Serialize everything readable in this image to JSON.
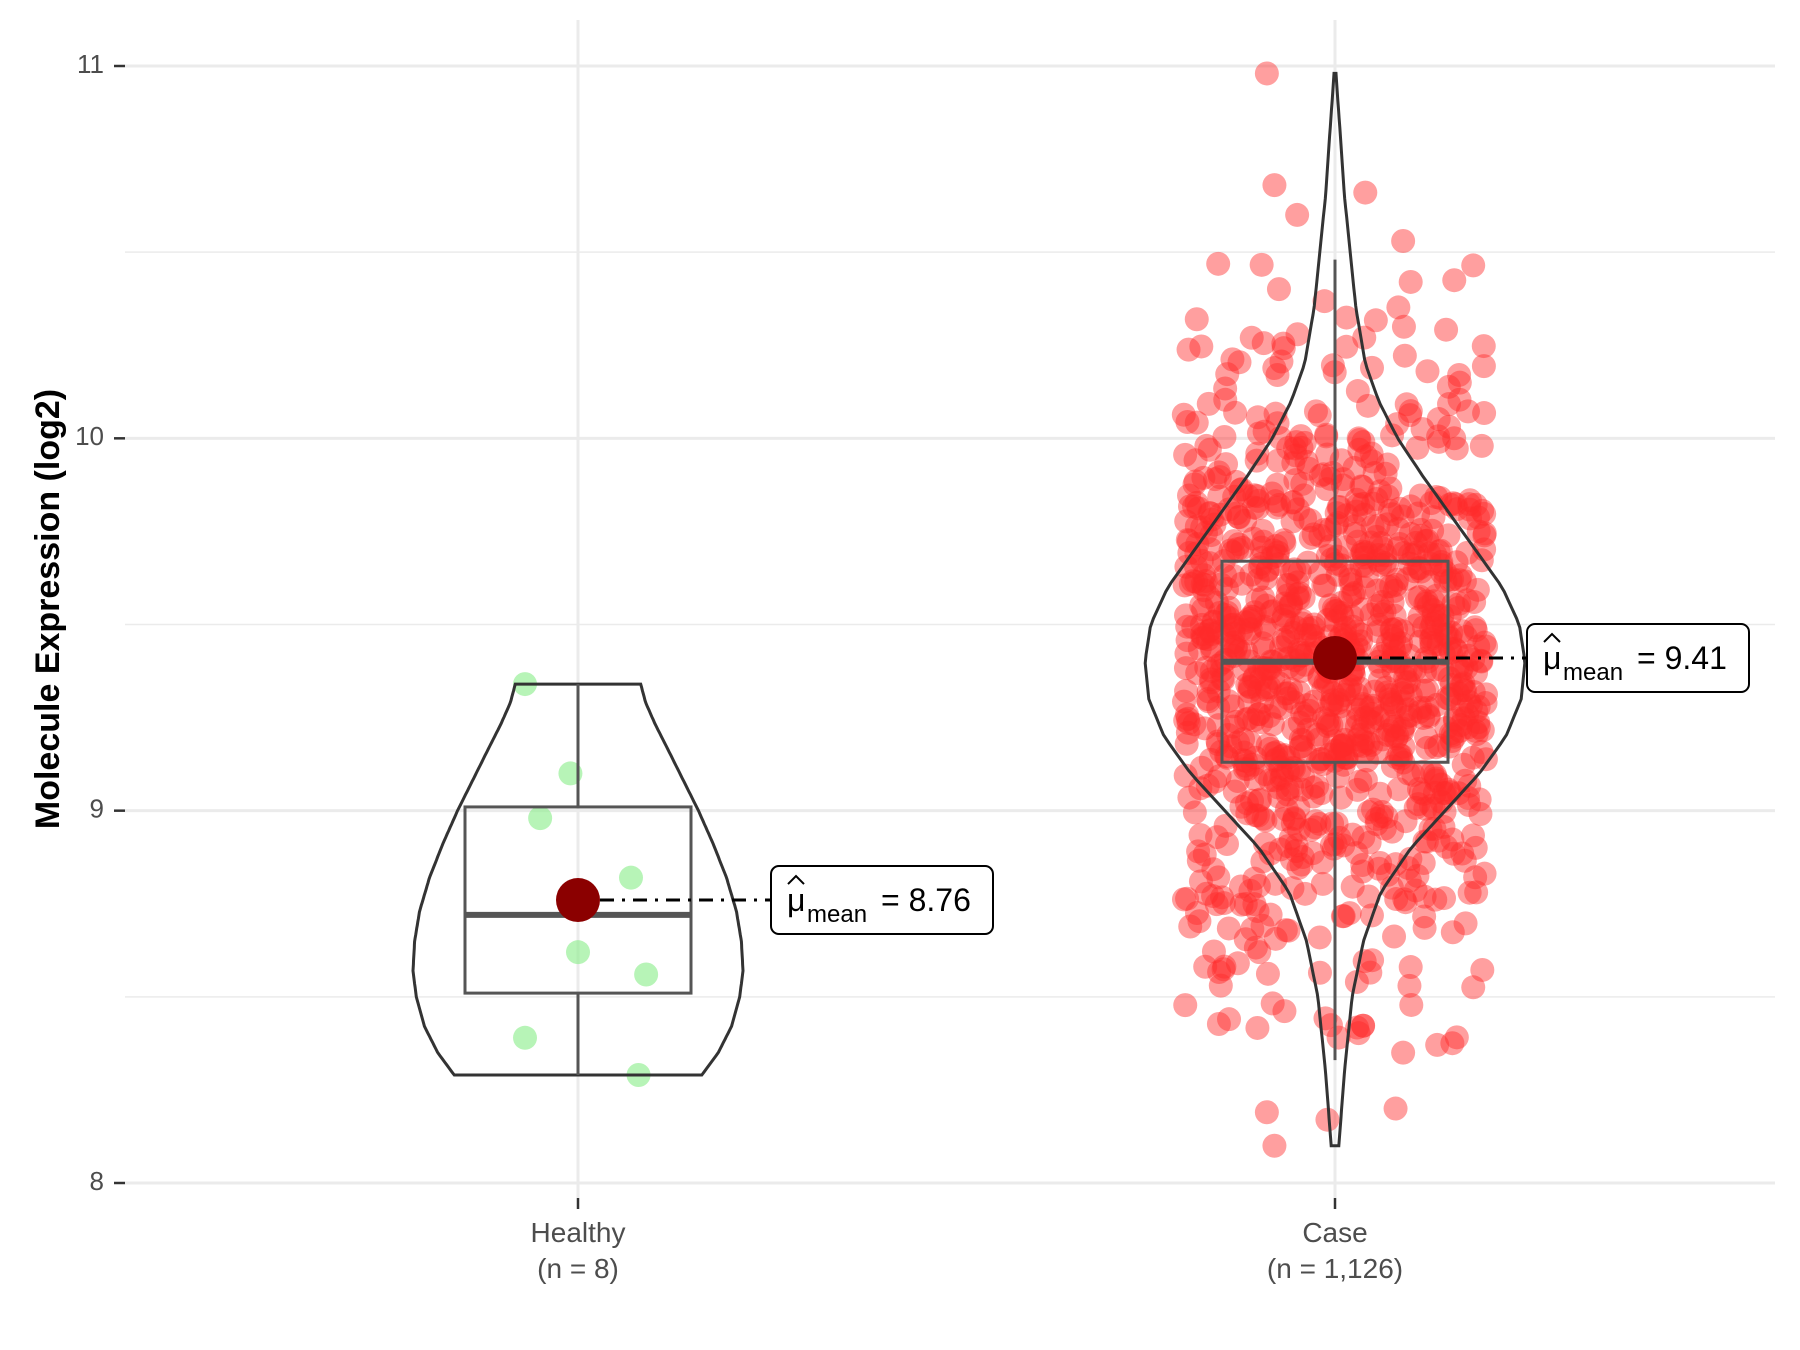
{
  "chart_data": {
    "type": "violin",
    "title": "",
    "xlabel": "",
    "ylabel": "Molecule Expression (log2)",
    "ylim": [
      7.9,
      11.15
    ],
    "yticks": [
      8,
      9,
      10,
      11
    ],
    "ytick_labels": [
      "8",
      "9",
      "10",
      "11"
    ],
    "grid": true,
    "legend": "none",
    "colors": {
      "grid": "#ebebeb",
      "outline": "#333333",
      "box": "#555555",
      "mean": "#8b0000"
    },
    "groups": [
      {
        "name": "Healthy",
        "n_label": "(n = 8)",
        "color": "#90ee90",
        "point_opacity": 0.65,
        "box": {
          "q1": 8.51,
          "median": 8.72,
          "q3": 9.01,
          "whisker_low": 8.29,
          "whisker_high": 9.34
        },
        "mean": 8.76,
        "mean_label": "8.76",
        "violin_range": [
          8.29,
          9.34
        ],
        "violin_profile": [
          [
            8.29,
            0.75
          ],
          [
            8.35,
            0.85
          ],
          [
            8.42,
            0.93
          ],
          [
            8.5,
            0.98
          ],
          [
            8.57,
            1.0
          ],
          [
            8.65,
            0.99
          ],
          [
            8.73,
            0.96
          ],
          [
            8.82,
            0.9
          ],
          [
            8.91,
            0.82
          ],
          [
            9.0,
            0.73
          ],
          [
            9.08,
            0.64
          ],
          [
            9.16,
            0.55
          ],
          [
            9.23,
            0.47
          ],
          [
            9.29,
            0.41
          ],
          [
            9.34,
            0.38
          ]
        ],
        "points": [
          [
            -0.07,
            9.34
          ],
          [
            -0.01,
            9.1
          ],
          [
            -0.05,
            8.98
          ],
          [
            0.07,
            8.82
          ],
          [
            0.0,
            8.62
          ],
          [
            0.09,
            8.56
          ],
          [
            -0.07,
            8.39
          ],
          [
            0.08,
            8.29
          ]
        ]
      },
      {
        "name": "Case",
        "n_label": "(n = 1,126)",
        "color": "#ff2a2a",
        "point_opacity": 0.45,
        "box": {
          "q1": 9.13,
          "median": 9.4,
          "q3": 9.67,
          "whisker_low": 8.33,
          "whisker_high": 10.48
        },
        "mean": 9.41,
        "mean_label": "9.41",
        "violin_range": [
          8.1,
          10.98
        ],
        "violin_profile": [
          [
            8.1,
            0.02
          ],
          [
            8.3,
            0.05
          ],
          [
            8.5,
            0.09
          ],
          [
            8.65,
            0.15
          ],
          [
            8.78,
            0.24
          ],
          [
            8.9,
            0.4
          ],
          [
            9.0,
            0.58
          ],
          [
            9.1,
            0.76
          ],
          [
            9.2,
            0.9
          ],
          [
            9.3,
            0.98
          ],
          [
            9.4,
            1.0
          ],
          [
            9.5,
            0.97
          ],
          [
            9.6,
            0.88
          ],
          [
            9.7,
            0.74
          ],
          [
            9.8,
            0.6
          ],
          [
            9.9,
            0.46
          ],
          [
            10.0,
            0.33
          ],
          [
            10.1,
            0.23
          ],
          [
            10.2,
            0.16
          ],
          [
            10.35,
            0.11
          ],
          [
            10.5,
            0.08
          ],
          [
            10.65,
            0.05
          ],
          [
            10.8,
            0.03
          ],
          [
            10.98,
            0.005
          ]
        ],
        "n_points": 1126,
        "point_spread": 0.2,
        "outlier_points": [
          [
            -0.09,
            10.98
          ],
          [
            -0.08,
            10.68
          ],
          [
            -0.05,
            10.6
          ],
          [
            0.04,
            10.66
          ],
          [
            0.09,
            10.53
          ],
          [
            -0.11,
            10.27
          ],
          [
            0.1,
            10.42
          ],
          [
            -0.14,
            8.44
          ],
          [
            -0.09,
            8.19
          ],
          [
            0.08,
            8.2
          ],
          [
            -0.08,
            8.1
          ],
          [
            -0.01,
            8.17
          ],
          [
            0.09,
            8.35
          ],
          [
            -0.1,
            8.62
          ],
          [
            0.1,
            8.58
          ]
        ]
      }
    ]
  }
}
